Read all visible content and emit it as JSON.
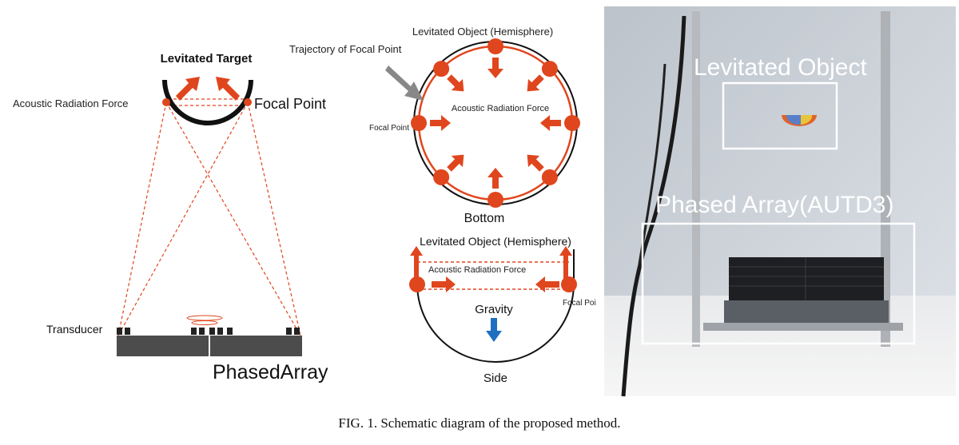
{
  "left_panel": {
    "title": "Levitated Target",
    "force_label": "Acoustic Radiation Force",
    "focal_label": "Focal Point",
    "transducer_label": "Transducer",
    "array_label": "PhasedArray"
  },
  "middle_top": {
    "object_label": "Levitated Object (Hemisphere)",
    "trajectory_label": "Trajectory of Focal Point",
    "force_label": "Acoustic Radiation Force",
    "focal_label": "Focal Point",
    "view_label": "Bottom"
  },
  "middle_bottom": {
    "object_label": "Levitated Object (Hemisphere)",
    "force_label": "Acoustic Radiation Force",
    "focal_label": "Focal Poi",
    "gravity_label": "Gravity",
    "view_label": "Side"
  },
  "photo": {
    "object_label": "Levitated Object",
    "array_label": "Phased Array(AUTD3)"
  },
  "caption": "FIG. 1. Schematic diagram of the proposed method.",
  "colors": {
    "accent": "#e0461e",
    "gravity": "#1f6fc0"
  }
}
